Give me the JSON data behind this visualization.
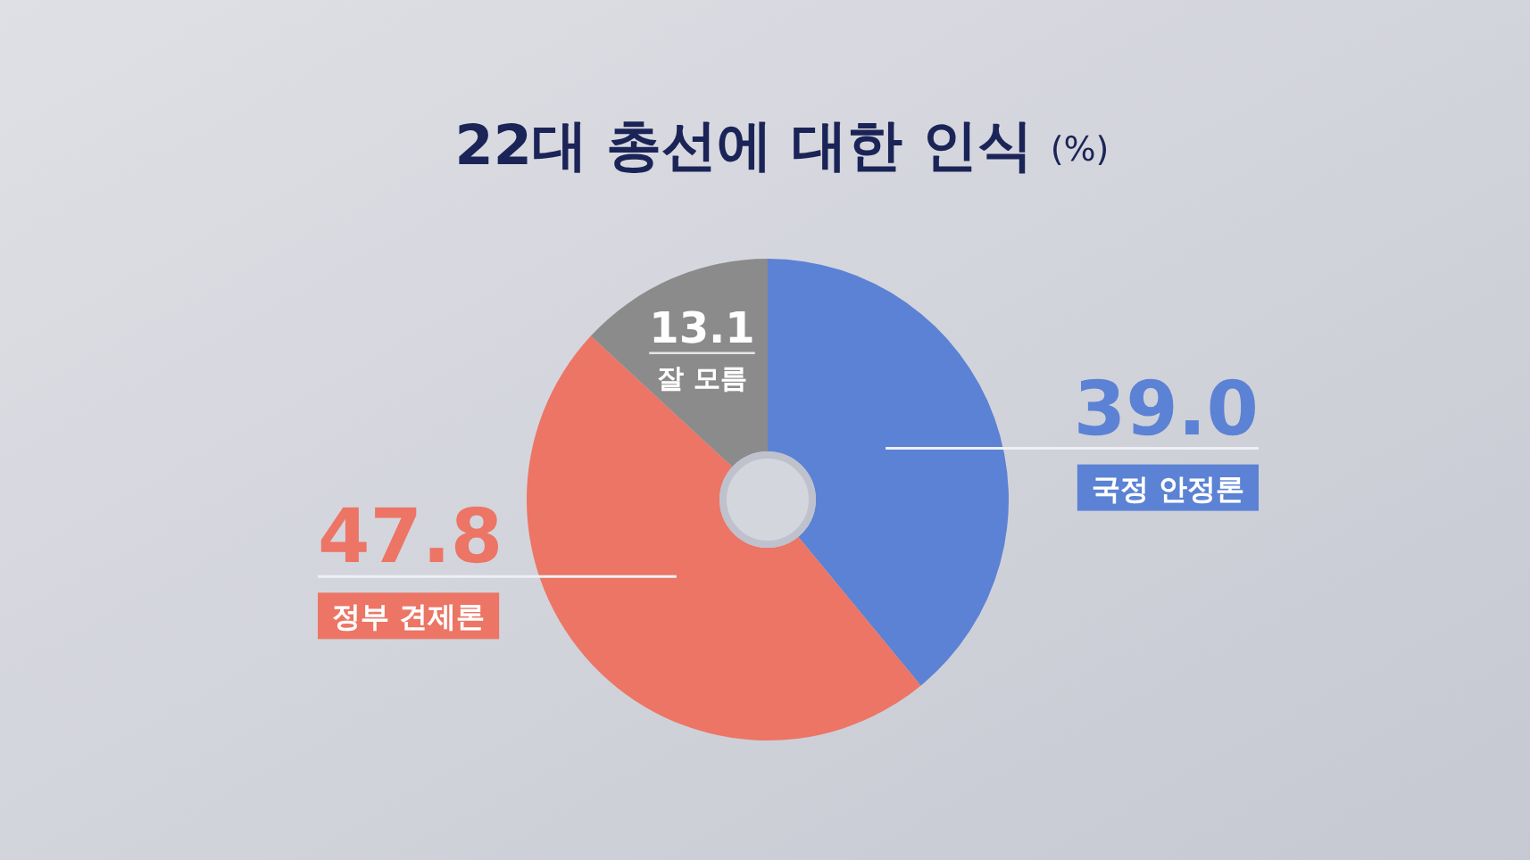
{
  "chart_data": {
    "type": "donut",
    "title": "22대 총선에 대한 인식",
    "subtitle": "(%)",
    "categories": [
      "국정 안정론",
      "정부 견제론",
      "잘 모름"
    ],
    "values": [
      39.0,
      47.8,
      13.1
    ],
    "value_labels": [
      "39.0",
      "47.8",
      "13.1"
    ],
    "colors": [
      "#5b82d4",
      "#ec7565",
      "#8b8b8b"
    ]
  }
}
